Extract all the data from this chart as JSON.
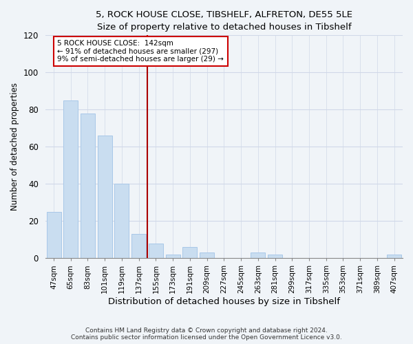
{
  "title1": "5, ROCK HOUSE CLOSE, TIBSHELF, ALFRETON, DE55 5LE",
  "title2": "Size of property relative to detached houses in Tibshelf",
  "xlabel": "Distribution of detached houses by size in Tibshelf",
  "ylabel": "Number of detached properties",
  "bin_labels": [
    "47sqm",
    "65sqm",
    "83sqm",
    "101sqm",
    "119sqm",
    "137sqm",
    "155sqm",
    "173sqm",
    "191sqm",
    "209sqm",
    "227sqm",
    "245sqm",
    "263sqm",
    "281sqm",
    "299sqm",
    "317sqm",
    "335sqm",
    "353sqm",
    "371sqm",
    "389sqm",
    "407sqm"
  ],
  "bar_heights": [
    25,
    85,
    78,
    66,
    40,
    13,
    8,
    2,
    6,
    3,
    0,
    0,
    3,
    2,
    0,
    0,
    0,
    0,
    0,
    0,
    2
  ],
  "bar_color": "#c9ddf0",
  "bar_edge_color": "#a8c8e8",
  "annotation_line_bin": 5.5,
  "subject_line_color": "#aa0000",
  "ylim": [
    0,
    120
  ],
  "yticks": [
    0,
    20,
    40,
    60,
    80,
    100,
    120
  ],
  "footnote1": "Contains HM Land Registry data © Crown copyright and database right 2024.",
  "footnote2": "Contains public sector information licensed under the Open Government Licence v3.0.",
  "grid_color": "#d0d8e8",
  "background_color": "#f0f4f8",
  "title1_fontsize": 9.5,
  "title2_fontsize": 9,
  "bar_width": 0.85
}
